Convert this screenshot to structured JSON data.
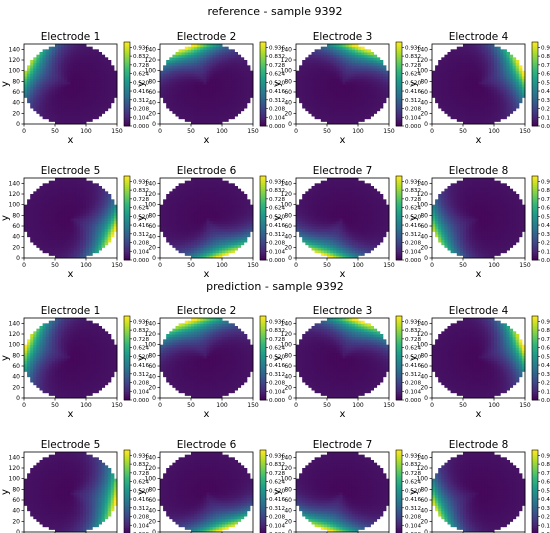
{
  "figure": {
    "sections": [
      {
        "title": "reference - sample 9392"
      },
      {
        "title": "prediction - sample 9392"
      }
    ]
  },
  "chart_data": {
    "type": "heatmap",
    "colormap": "viridis",
    "xlabel": "x",
    "ylabel": "y",
    "xlim": [
      0,
      150
    ],
    "ylim": [
      0,
      150
    ],
    "x_ticks": [
      "0",
      "50",
      "100",
      "150"
    ],
    "y_ticks": [
      "0",
      "20",
      "40",
      "60",
      "80",
      "100",
      "120",
      "140"
    ],
    "colorbar": {
      "range": [
        0,
        1.0
      ],
      "ticks": [
        "0.000",
        "0.104",
        "0.208",
        "0.312",
        "0.416",
        "0.520",
        "0.624",
        "0.728",
        "0.832",
        "0.936"
      ]
    },
    "domain": {
      "shape": "circle",
      "center": [
        75,
        75
      ],
      "radius": 75
    },
    "panels": [
      {
        "section": "reference",
        "title": "Electrode 1",
        "hotspot": {
          "angle_deg": 155,
          "spread_deg": 42,
          "depth": 38,
          "peak": 0.85
        }
      },
      {
        "section": "reference",
        "title": "Electrode 2",
        "hotspot": {
          "angle_deg": 112,
          "spread_deg": 40,
          "depth": 38,
          "peak": 0.98
        }
      },
      {
        "section": "reference",
        "title": "Electrode 3",
        "hotspot": {
          "angle_deg": 68,
          "spread_deg": 40,
          "depth": 38,
          "peak": 0.98
        }
      },
      {
        "section": "reference",
        "title": "Electrode 4",
        "hotspot": {
          "angle_deg": 22,
          "spread_deg": 42,
          "depth": 38,
          "peak": 0.98
        }
      },
      {
        "section": "reference",
        "title": "Electrode 5",
        "hotspot": {
          "angle_deg": -22,
          "spread_deg": 42,
          "depth": 38,
          "peak": 0.98
        }
      },
      {
        "section": "reference",
        "title": "Electrode 6",
        "hotspot": {
          "angle_deg": -68,
          "spread_deg": 40,
          "depth": 38,
          "peak": 0.98
        }
      },
      {
        "section": "reference",
        "title": "Electrode 7",
        "hotspot": {
          "angle_deg": -112,
          "spread_deg": 40,
          "depth": 38,
          "peak": 0.98
        }
      },
      {
        "section": "reference",
        "title": "Electrode 8",
        "hotspot": {
          "angle_deg": -158,
          "spread_deg": 42,
          "depth": 36,
          "peak": 0.85
        }
      },
      {
        "section": "prediction",
        "title": "Electrode 1",
        "hotspot": {
          "angle_deg": 160,
          "spread_deg": 44,
          "depth": 38,
          "peak": 0.95
        }
      },
      {
        "section": "prediction",
        "title": "Electrode 2",
        "hotspot": {
          "angle_deg": 110,
          "spread_deg": 44,
          "depth": 40,
          "peak": 0.98
        }
      },
      {
        "section": "prediction",
        "title": "Electrode 3",
        "hotspot": {
          "angle_deg": 68,
          "spread_deg": 40,
          "depth": 38,
          "peak": 0.98
        }
      },
      {
        "section": "prediction",
        "title": "Electrode 4",
        "hotspot": {
          "angle_deg": 20,
          "spread_deg": 40,
          "depth": 36,
          "peak": 0.98
        }
      },
      {
        "section": "prediction",
        "title": "Electrode 5",
        "hotspot": {
          "angle_deg": -12,
          "spread_deg": 46,
          "depth": 40,
          "peak": 0.98
        }
      },
      {
        "section": "prediction",
        "title": "Electrode 6",
        "hotspot": {
          "angle_deg": -68,
          "spread_deg": 40,
          "depth": 36,
          "peak": 0.98
        }
      },
      {
        "section": "prediction",
        "title": "Electrode 7",
        "hotspot": {
          "angle_deg": -110,
          "spread_deg": 40,
          "depth": 38,
          "peak": 0.98
        }
      },
      {
        "section": "prediction",
        "title": "Electrode 8",
        "hotspot": {
          "angle_deg": -158,
          "spread_deg": 40,
          "depth": 34,
          "peak": 0.9
        }
      }
    ]
  }
}
